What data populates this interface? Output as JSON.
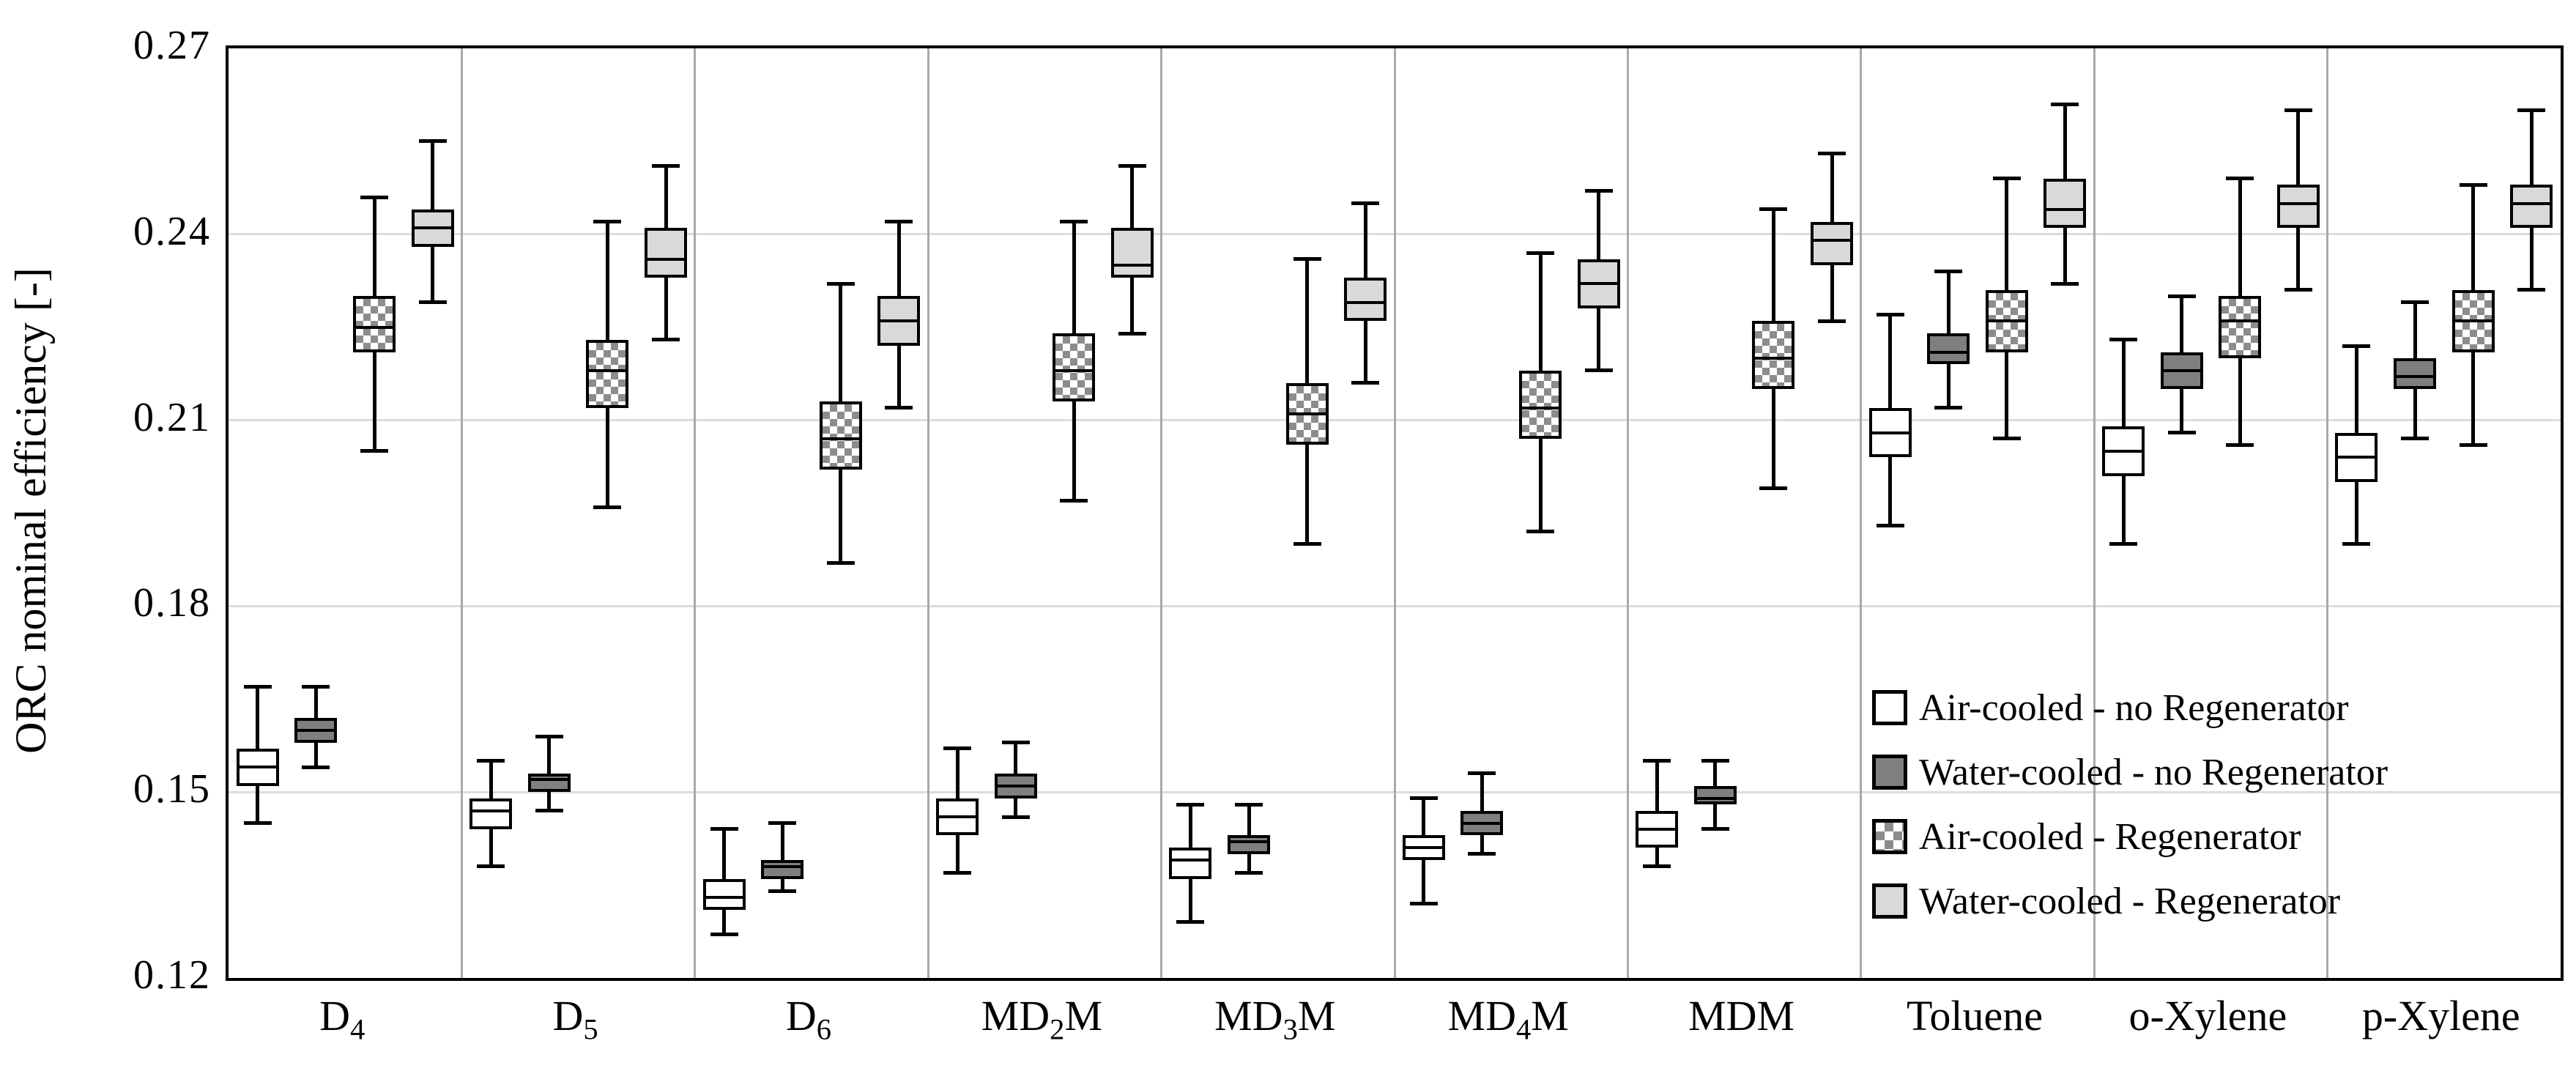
{
  "colors": {
    "box_border": "#000000",
    "white_fill": "#ffffff",
    "dark_gray_fill": "#7f7f7f",
    "light_gray_fill": "#d9d9d9",
    "checker_gray": "#8c8c8c",
    "gridline": "#dcdcdc",
    "separator": "#a9a9a9"
  },
  "chart_data": {
    "type": "boxplot",
    "title": "",
    "xlabel": "",
    "ylabel": "ORC nominal efficiency [-]",
    "ylim": [
      0.12,
      0.27
    ],
    "yticks": [
      0.12,
      0.15,
      0.18,
      0.21,
      0.24,
      0.27
    ],
    "ytick_labels": [
      "0.12",
      "0.15",
      "0.18",
      "0.21",
      "0.24",
      "0.27"
    ],
    "grid": "horizontal-light, vertical category separators",
    "legend_position": "inside bottom-right",
    "categories": [
      {
        "parts": [
          {
            "t": "D"
          },
          {
            "t": "4",
            "sub": true
          }
        ]
      },
      {
        "parts": [
          {
            "t": "D"
          },
          {
            "t": "5",
            "sub": true
          }
        ]
      },
      {
        "parts": [
          {
            "t": "D"
          },
          {
            "t": "6",
            "sub": true
          }
        ]
      },
      {
        "parts": [
          {
            "t": "MD"
          },
          {
            "t": "2",
            "sub": true
          },
          {
            "t": "M"
          }
        ]
      },
      {
        "parts": [
          {
            "t": "MD"
          },
          {
            "t": "3",
            "sub": true
          },
          {
            "t": "M"
          }
        ]
      },
      {
        "parts": [
          {
            "t": "MD"
          },
          {
            "t": "4",
            "sub": true
          },
          {
            "t": "M"
          }
        ]
      },
      {
        "parts": [
          {
            "t": "MDM"
          }
        ]
      },
      {
        "parts": [
          {
            "t": "Toluene"
          }
        ]
      },
      {
        "parts": [
          {
            "t": "o-Xylene"
          }
        ]
      },
      {
        "parts": [
          {
            "t": "p-Xylene"
          }
        ]
      }
    ],
    "series": [
      {
        "name": "Air-cooled - no Regenerator",
        "fill": "white",
        "boxes": [
          {
            "lo": 0.145,
            "q1": 0.151,
            "med": 0.154,
            "q3": 0.157,
            "hi": 0.167
          },
          {
            "lo": 0.138,
            "q1": 0.144,
            "med": 0.147,
            "q3": 0.149,
            "hi": 0.155
          },
          {
            "lo": 0.127,
            "q1": 0.131,
            "med": 0.133,
            "q3": 0.136,
            "hi": 0.144
          },
          {
            "lo": 0.137,
            "q1": 0.143,
            "med": 0.146,
            "q3": 0.149,
            "hi": 0.157
          },
          {
            "lo": 0.129,
            "q1": 0.136,
            "med": 0.139,
            "q3": 0.141,
            "hi": 0.148
          },
          {
            "lo": 0.132,
            "q1": 0.139,
            "med": 0.141,
            "q3": 0.143,
            "hi": 0.149
          },
          {
            "lo": 0.138,
            "q1": 0.141,
            "med": 0.144,
            "q3": 0.147,
            "hi": 0.155
          },
          {
            "lo": 0.193,
            "q1": 0.204,
            "med": 0.208,
            "q3": 0.212,
            "hi": 0.227
          },
          {
            "lo": 0.19,
            "q1": 0.201,
            "med": 0.205,
            "q3": 0.209,
            "hi": 0.223
          },
          {
            "lo": 0.19,
            "q1": 0.2,
            "med": 0.204,
            "q3": 0.208,
            "hi": 0.222
          }
        ]
      },
      {
        "name": "Water-cooled - no Regenerator",
        "fill": "dark",
        "boxes": [
          {
            "lo": 0.154,
            "q1": 0.158,
            "med": 0.16,
            "q3": 0.162,
            "hi": 0.167
          },
          {
            "lo": 0.147,
            "q1": 0.15,
            "med": 0.152,
            "q3": 0.153,
            "hi": 0.159
          },
          {
            "lo": 0.134,
            "q1": 0.136,
            "med": 0.138,
            "q3": 0.139,
            "hi": 0.145
          },
          {
            "lo": 0.146,
            "q1": 0.149,
            "med": 0.151,
            "q3": 0.153,
            "hi": 0.158
          },
          {
            "lo": 0.137,
            "q1": 0.14,
            "med": 0.142,
            "q3": 0.143,
            "hi": 0.148
          },
          {
            "lo": 0.14,
            "q1": 0.143,
            "med": 0.145,
            "q3": 0.147,
            "hi": 0.153
          },
          {
            "lo": 0.144,
            "q1": 0.148,
            "med": 0.149,
            "q3": 0.151,
            "hi": 0.155
          },
          {
            "lo": 0.212,
            "q1": 0.219,
            "med": 0.221,
            "q3": 0.224,
            "hi": 0.234
          },
          {
            "lo": 0.208,
            "q1": 0.215,
            "med": 0.218,
            "q3": 0.221,
            "hi": 0.23
          },
          {
            "lo": 0.207,
            "q1": 0.215,
            "med": 0.217,
            "q3": 0.22,
            "hi": 0.229
          }
        ]
      },
      {
        "name": "Air-cooled - Regenerator",
        "fill": "checker",
        "boxes": [
          {
            "lo": 0.205,
            "q1": 0.221,
            "med": 0.225,
            "q3": 0.23,
            "hi": 0.246
          },
          {
            "lo": 0.196,
            "q1": 0.212,
            "med": 0.218,
            "q3": 0.223,
            "hi": 0.242
          },
          {
            "lo": 0.187,
            "q1": 0.202,
            "med": 0.207,
            "q3": 0.213,
            "hi": 0.232
          },
          {
            "lo": 0.197,
            "q1": 0.213,
            "med": 0.218,
            "q3": 0.224,
            "hi": 0.242
          },
          {
            "lo": 0.19,
            "q1": 0.206,
            "med": 0.211,
            "q3": 0.216,
            "hi": 0.236
          },
          {
            "lo": 0.192,
            "q1": 0.207,
            "med": 0.212,
            "q3": 0.218,
            "hi": 0.237
          },
          {
            "lo": 0.199,
            "q1": 0.215,
            "med": 0.22,
            "q3": 0.226,
            "hi": 0.244
          },
          {
            "lo": 0.207,
            "q1": 0.221,
            "med": 0.226,
            "q3": 0.231,
            "hi": 0.249
          },
          {
            "lo": 0.206,
            "q1": 0.22,
            "med": 0.226,
            "q3": 0.23,
            "hi": 0.249
          },
          {
            "lo": 0.206,
            "q1": 0.221,
            "med": 0.226,
            "q3": 0.231,
            "hi": 0.248
          }
        ]
      },
      {
        "name": "Water-cooled - Regenerator",
        "fill": "light",
        "boxes": [
          {
            "lo": 0.229,
            "q1": 0.238,
            "med": 0.241,
            "q3": 0.244,
            "hi": 0.255
          },
          {
            "lo": 0.223,
            "q1": 0.233,
            "med": 0.236,
            "q3": 0.241,
            "hi": 0.251
          },
          {
            "lo": 0.212,
            "q1": 0.222,
            "med": 0.226,
            "q3": 0.23,
            "hi": 0.242
          },
          {
            "lo": 0.224,
            "q1": 0.233,
            "med": 0.235,
            "q3": 0.241,
            "hi": 0.251
          },
          {
            "lo": 0.216,
            "q1": 0.226,
            "med": 0.229,
            "q3": 0.233,
            "hi": 0.245
          },
          {
            "lo": 0.218,
            "q1": 0.228,
            "med": 0.232,
            "q3": 0.236,
            "hi": 0.247
          },
          {
            "lo": 0.226,
            "q1": 0.235,
            "med": 0.239,
            "q3": 0.242,
            "hi": 0.253
          },
          {
            "lo": 0.232,
            "q1": 0.241,
            "med": 0.244,
            "q3": 0.249,
            "hi": 0.261
          },
          {
            "lo": 0.231,
            "q1": 0.241,
            "med": 0.245,
            "q3": 0.248,
            "hi": 0.26
          },
          {
            "lo": 0.231,
            "q1": 0.241,
            "med": 0.245,
            "q3": 0.248,
            "hi": 0.26
          }
        ]
      }
    ]
  }
}
